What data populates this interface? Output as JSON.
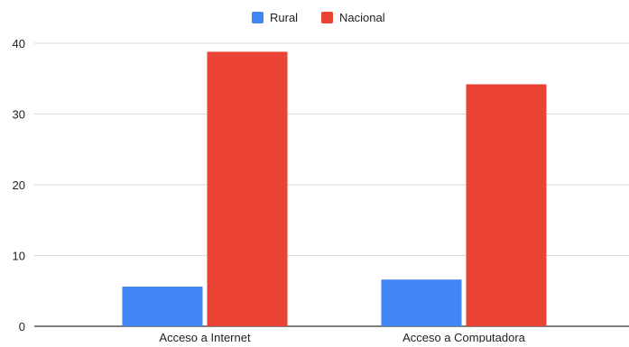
{
  "chart_data": {
    "type": "bar",
    "categories": [
      "Acceso a Internet",
      "Acceso a Computadora"
    ],
    "series": [
      {
        "name": "Rural",
        "values": [
          5.6,
          6.6
        ],
        "color": "#4285f4"
      },
      {
        "name": "Nacional",
        "values": [
          38.8,
          34.2
        ],
        "color": "#ea4335"
      }
    ],
    "ylim": [
      0,
      40
    ],
    "yticks": [
      0,
      10,
      20,
      30,
      40
    ],
    "grid": true,
    "legend_position": "top-center"
  }
}
